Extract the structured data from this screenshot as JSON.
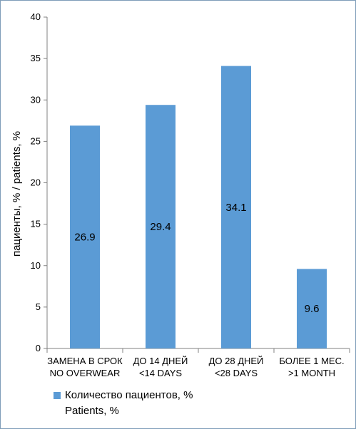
{
  "chart_data": {
    "type": "bar",
    "categories": [
      [
        "ЗАМЕНА В СРОК",
        "NO OVERWEAR"
      ],
      [
        "ДО 14 ДНЕЙ",
        "<14 DAYS"
      ],
      [
        "ДО 28 ДНЕЙ",
        "<28 DAYS"
      ],
      [
        "БОЛЕЕ 1 МЕС.",
        ">1 MONTH"
      ]
    ],
    "series": [
      {
        "name": "Количество пациентов, % Patients, %",
        "name_lines": [
          "Количество пациентов, %",
          "Patients, %"
        ],
        "values": [
          26.9,
          29.4,
          34.1,
          9.6
        ],
        "value_labels": [
          "26.9",
          "29.4",
          "34.1",
          "9.6"
        ],
        "color": "#5b9bd5"
      }
    ],
    "ylabel": "пациенты, % / patients, %",
    "xlabel": "",
    "title": "",
    "ylim": [
      0,
      40
    ],
    "yticks": [
      0,
      5,
      10,
      15,
      20,
      25,
      30,
      35,
      40
    ],
    "grid": false,
    "legend_position": "bottom-left"
  }
}
